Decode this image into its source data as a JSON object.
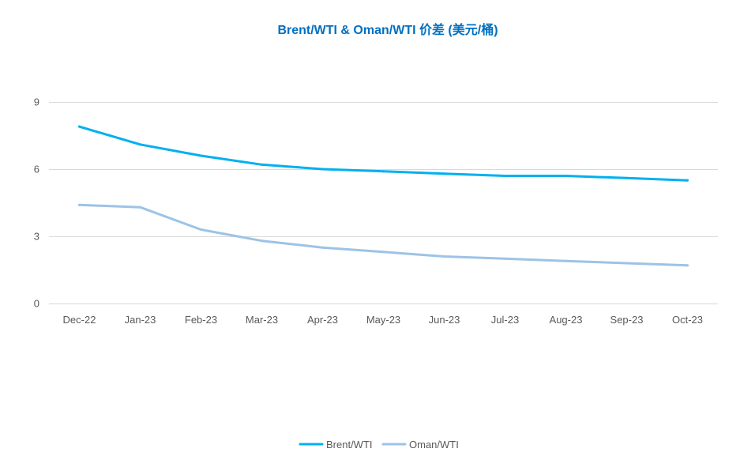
{
  "chart_data": {
    "type": "line",
    "title": "Brent/WTI & Oman/WTI 价差 (美元/桶)",
    "xlabel": "",
    "ylabel": "",
    "categories": [
      "Dec-22",
      "Jan-23",
      "Feb-23",
      "Mar-23",
      "Apr-23",
      "May-23",
      "Jun-23",
      "Jul-23",
      "Aug-23",
      "Sep-23",
      "Oct-23"
    ],
    "series": [
      {
        "name": "Brent/WTI",
        "color": "#00B0F0",
        "values": [
          7.9,
          7.1,
          6.6,
          6.2,
          6.0,
          5.9,
          5.8,
          5.7,
          5.7,
          5.6,
          5.5
        ]
      },
      {
        "name": "Oman/WTI",
        "color": "#9DC3E6",
        "values": [
          4.4,
          4.3,
          3.3,
          2.8,
          2.5,
          2.3,
          2.1,
          2.0,
          1.9,
          1.8,
          1.7
        ]
      }
    ],
    "ylim": [
      0,
      9
    ],
    "yticks": [
      0,
      3,
      6,
      9
    ],
    "grid": true,
    "legend": "bottom-center"
  },
  "colors": {
    "title": "#0070C0",
    "grid": "#D9D9D9",
    "axis_text": "#595959"
  }
}
